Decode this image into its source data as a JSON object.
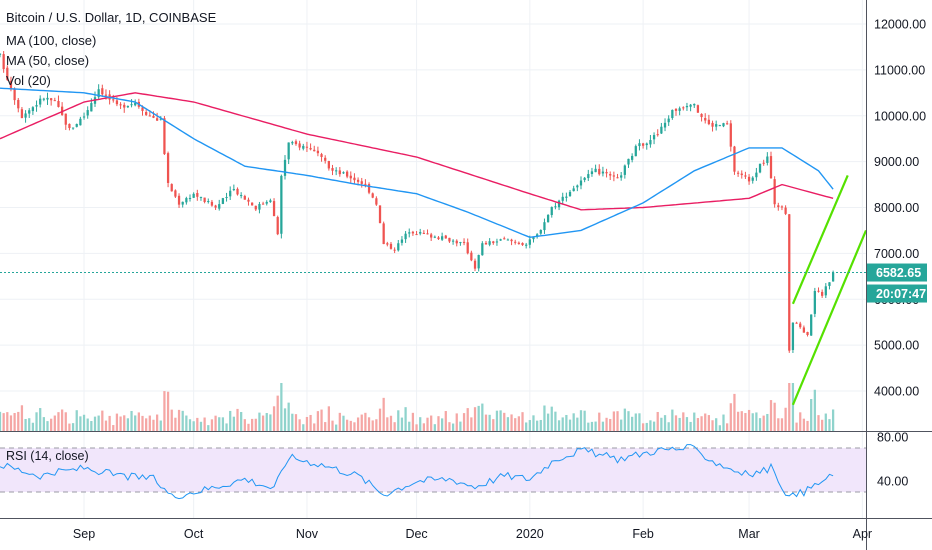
{
  "header": {
    "symbol_line": "Bitcoin / U.S. Dollar, 1D, COINBASE",
    "ma100_label": "MA (100, close)",
    "ma50_label": "MA (50, close)",
    "vol_label": "Vol (20)",
    "rsi_label": "RSI (14, close)"
  },
  "price_labels": {
    "last_price": "6582.65",
    "countdown": "20:07:47"
  },
  "colors": {
    "up": "#26a69a",
    "down": "#ef5350",
    "up_vol": "#8fd3cc",
    "down_vol": "#f5a6a4",
    "ma50": "#2196f3",
    "ma100": "#e91e63",
    "channel": "#55e100",
    "rsi_line": "#2196f3",
    "rsi_band": "#f1e6fb",
    "grid": "#eef1f5",
    "last_price_line": "#26a69a"
  },
  "chart_data": [
    {
      "type": "candlestick",
      "title": "Bitcoin / U.S. Dollar, 1D, COINBASE",
      "x_ticks": [
        "Sep",
        "Oct",
        "Nov",
        "Dec",
        "2020",
        "Feb",
        "Mar",
        "Apr"
      ],
      "y_ticks": [
        4000,
        5000,
        6000,
        7000,
        8000,
        9000,
        10000,
        11000,
        12000
      ],
      "y_tick_labels": [
        "4000.00",
        "5000.00",
        "6000.00",
        "7000.00",
        "8000.00",
        "9000.00",
        "10000.00",
        "11000.00",
        "12000.00"
      ],
      "ylim": [
        3400,
        12400
      ],
      "x_start": "2019-08-09",
      "x_end": "2020-04-02",
      "last_price": 6582.65,
      "anchors": [
        [
          "2019-08-09",
          11300
        ],
        [
          "2019-08-12",
          10600
        ],
        [
          "2019-08-15",
          10000
        ],
        [
          "2019-08-18",
          10200
        ],
        [
          "2019-08-21",
          10400
        ],
        [
          "2019-08-24",
          10300
        ],
        [
          "2019-08-28",
          9700
        ],
        [
          "2019-09-01",
          10000
        ],
        [
          "2019-09-05",
          10600
        ],
        [
          "2019-09-10",
          10200
        ],
        [
          "2019-09-15",
          10300
        ],
        [
          "2019-09-19",
          10000
        ],
        [
          "2019-09-22",
          9900
        ],
        [
          "2019-09-24",
          8500
        ],
        [
          "2019-09-27",
          8100
        ],
        [
          "2019-10-01",
          8300
        ],
        [
          "2019-10-07",
          8000
        ],
        [
          "2019-10-12",
          8400
        ],
        [
          "2019-10-18",
          8000
        ],
        [
          "2019-10-22",
          8200
        ],
        [
          "2019-10-24",
          7400
        ],
        [
          "2019-10-25",
          8700
        ],
        [
          "2019-10-27",
          9400
        ],
        [
          "2019-11-02",
          9300
        ],
        [
          "2019-11-08",
          8800
        ],
        [
          "2019-11-12",
          8700
        ],
        [
          "2019-11-17",
          8500
        ],
        [
          "2019-11-20",
          8100
        ],
        [
          "2019-11-22",
          7200
        ],
        [
          "2019-11-25",
          7100
        ],
        [
          "2019-11-29",
          7500
        ],
        [
          "2019-12-04",
          7400
        ],
        [
          "2019-12-10",
          7300
        ],
        [
          "2019-12-14",
          7200
        ],
        [
          "2019-12-17",
          6700
        ],
        [
          "2019-12-19",
          7200
        ],
        [
          "2019-12-25",
          7300
        ],
        [
          "2019-12-31",
          7200
        ],
        [
          "2020-01-03",
          7400
        ],
        [
          "2020-01-07",
          8000
        ],
        [
          "2020-01-14",
          8500
        ],
        [
          "2020-01-19",
          8800
        ],
        [
          "2020-01-25",
          8600
        ],
        [
          "2020-01-30",
          9300
        ],
        [
          "2020-02-05",
          9600
        ],
        [
          "2020-02-09",
          10100
        ],
        [
          "2020-02-14",
          10300
        ],
        [
          "2020-02-19",
          9800
        ],
        [
          "2020-02-24",
          9800
        ],
        [
          "2020-02-26",
          8800
        ],
        [
          "2020-03-01",
          8600
        ],
        [
          "2020-03-06",
          9100
        ],
        [
          "2020-03-08",
          8100
        ],
        [
          "2020-03-11",
          7900
        ],
        [
          "2020-03-12",
          4900
        ],
        [
          "2020-03-13",
          5500
        ],
        [
          "2020-03-15",
          5400
        ],
        [
          "2020-03-17",
          5200
        ],
        [
          "2020-03-19",
          6200
        ],
        [
          "2020-03-21",
          6100
        ],
        [
          "2020-03-23",
          6400
        ],
        [
          "2020-03-24",
          6582.65
        ]
      ],
      "ma50": [
        [
          "2019-08-09",
          10600
        ],
        [
          "2019-09-01",
          10500
        ],
        [
          "2019-09-15",
          10300
        ],
        [
          "2019-10-01",
          9500
        ],
        [
          "2019-10-15",
          8900
        ],
        [
          "2019-11-01",
          8700
        ],
        [
          "2019-11-15",
          8500
        ],
        [
          "2019-12-01",
          8300
        ],
        [
          "2019-12-15",
          7900
        ],
        [
          "2020-01-01",
          7350
        ],
        [
          "2020-01-15",
          7500
        ],
        [
          "2020-02-01",
          8100
        ],
        [
          "2020-02-15",
          8800
        ],
        [
          "2020-03-01",
          9300
        ],
        [
          "2020-03-10",
          9300
        ],
        [
          "2020-03-20",
          8800
        ],
        [
          "2020-03-24",
          8400
        ]
      ],
      "ma100": [
        [
          "2019-08-09",
          9500
        ],
        [
          "2019-09-01",
          10300
        ],
        [
          "2019-09-15",
          10500
        ],
        [
          "2019-10-01",
          10300
        ],
        [
          "2019-11-01",
          9600
        ],
        [
          "2019-12-01",
          9100
        ],
        [
          "2020-01-01",
          8300
        ],
        [
          "2020-01-15",
          7950
        ],
        [
          "2020-02-01",
          8000
        ],
        [
          "2020-03-01",
          8200
        ],
        [
          "2020-03-10",
          8500
        ],
        [
          "2020-03-24",
          8200
        ]
      ],
      "channel_lines": [
        [
          [
            "2020-03-13",
            5900
          ],
          [
            "2020-03-28",
            8700
          ]
        ],
        [
          [
            "2020-03-13",
            3700
          ],
          [
            "2020-04-02",
            7500
          ]
        ]
      ]
    },
    {
      "type": "line",
      "title": "RSI (14, close)",
      "y_ticks": [
        40,
        80
      ],
      "y_tick_labels": [
        "40.00",
        "80.00"
      ],
      "ylim": [
        20,
        85
      ],
      "band": [
        30,
        70
      ],
      "anchors": [
        [
          "2019-08-09",
          55
        ],
        [
          "2019-08-20",
          45
        ],
        [
          "2019-09-01",
          52
        ],
        [
          "2019-09-10",
          45
        ],
        [
          "2019-09-20",
          42
        ],
        [
          "2019-09-25",
          26
        ],
        [
          "2019-10-05",
          33
        ],
        [
          "2019-10-15",
          42
        ],
        [
          "2019-10-23",
          33
        ],
        [
          "2019-10-27",
          62
        ],
        [
          "2019-11-05",
          55
        ],
        [
          "2019-11-15",
          45
        ],
        [
          "2019-11-22",
          28
        ],
        [
          "2019-12-01",
          40
        ],
        [
          "2019-12-10",
          42
        ],
        [
          "2019-12-17",
          35
        ],
        [
          "2019-12-25",
          45
        ],
        [
          "2020-01-01",
          42
        ],
        [
          "2020-01-08",
          60
        ],
        [
          "2020-01-15",
          68
        ],
        [
          "2020-01-25",
          60
        ],
        [
          "2020-02-05",
          68
        ],
        [
          "2020-02-14",
          70
        ],
        [
          "2020-02-22",
          55
        ],
        [
          "2020-03-01",
          45
        ],
        [
          "2020-03-07",
          52
        ],
        [
          "2020-03-12",
          25
        ],
        [
          "2020-03-16",
          30
        ],
        [
          "2020-03-20",
          38
        ],
        [
          "2020-03-24",
          45
        ]
      ]
    }
  ]
}
